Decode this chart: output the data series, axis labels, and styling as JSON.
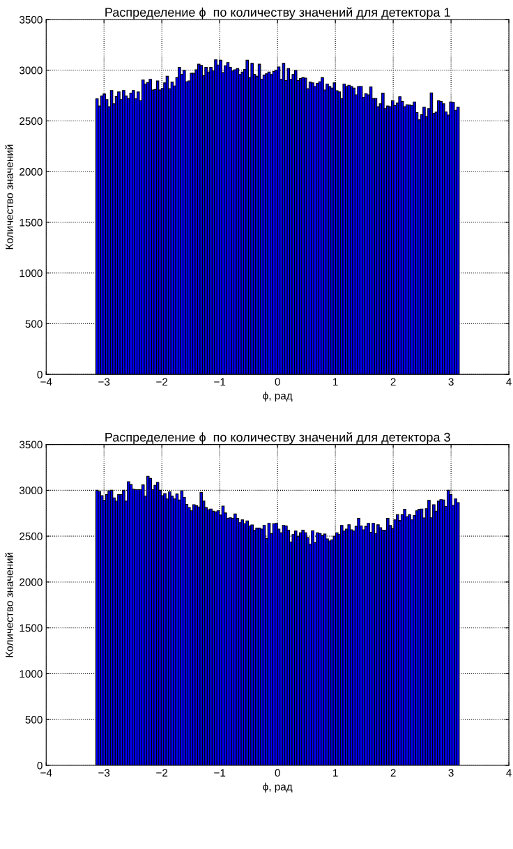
{
  "chart_data": [
    {
      "type": "histogram",
      "title": "Распределение ϕ  по количеству значений для детектора 1",
      "xlabel": "ϕ, рад",
      "ylabel": "Количество значений",
      "color": "#0000ff",
      "bins": [
        -3.142,
        -3.1,
        -3.058,
        -3.016,
        -2.974,
        -2.932,
        -2.89,
        -2.848,
        -2.806,
        -2.765,
        -2.723,
        -2.681,
        -2.639,
        -2.597,
        -2.555,
        -2.513,
        -2.471,
        -2.429,
        -2.388,
        -2.346,
        -2.304,
        -2.262,
        -2.22,
        -2.178,
        -2.136,
        -2.094,
        -2.053,
        -2.011,
        -1.969,
        -1.927,
        -1.885,
        -1.843,
        -1.801,
        -1.759,
        -1.717,
        -1.676,
        -1.634,
        -1.592,
        -1.55,
        -1.508,
        -1.466,
        -1.424,
        -1.382,
        -1.34,
        -1.299,
        -1.257,
        -1.215,
        -1.173,
        -1.131,
        -1.089,
        -1.047,
        -1.005,
        -0.963,
        -0.922,
        -0.88,
        -0.838,
        -0.796,
        -0.754,
        -0.712,
        -0.67,
        -0.628,
        -0.586,
        -0.545,
        -0.503,
        -0.461,
        -0.419,
        -0.377,
        -0.335,
        -0.293,
        -0.251,
        -0.209,
        -0.168,
        -0.126,
        -0.084,
        -0.042,
        0,
        0.042,
        0.084,
        0.126,
        0.168,
        0.209,
        0.251,
        0.293,
        0.335,
        0.377,
        0.419,
        0.461,
        0.503,
        0.545,
        0.586,
        0.628,
        0.67,
        0.712,
        0.754,
        0.796,
        0.838,
        0.88,
        0.922,
        0.963,
        1.005,
        1.047,
        1.089,
        1.131,
        1.173,
        1.215,
        1.257,
        1.299,
        1.34,
        1.382,
        1.424,
        1.466,
        1.508,
        1.55,
        1.592,
        1.634,
        1.676,
        1.717,
        1.759,
        1.801,
        1.843,
        1.885,
        1.927,
        1.969,
        2.011,
        2.053,
        2.094,
        2.136,
        2.178,
        2.22,
        2.262,
        2.304,
        2.346,
        2.388,
        2.429,
        2.471,
        2.513,
        2.555,
        2.597,
        2.639,
        2.681,
        2.723,
        2.765,
        2.806,
        2.848,
        2.89,
        2.932,
        2.974,
        3.016,
        3.058,
        3.1,
        3.142
      ],
      "values": [
        2718,
        2647,
        2746,
        2765,
        2711,
        2640,
        2800,
        2669,
        2741,
        2786,
        2711,
        2800,
        2746,
        2722,
        2774,
        2800,
        2718,
        2786,
        2699,
        2904,
        2864,
        2880,
        2911,
        2805,
        2810,
        2894,
        2805,
        2821,
        2875,
        2941,
        2817,
        2882,
        2845,
        2927,
        3028,
        2958,
        2998,
        2887,
        2894,
        2970,
        2970,
        3005,
        3059,
        3047,
        2946,
        3028,
        2982,
        3028,
        2993,
        3103,
        3052,
        3099,
        2977,
        3045,
        3075,
        3028,
        2993,
        3005,
        3017,
        2958,
        2982,
        3009,
        3099,
        2927,
        3068,
        2958,
        2941,
        3059,
        2911,
        2951,
        2965,
        2982,
        2958,
        2988,
        3002,
        3033,
        2911,
        3068,
        2899,
        3017,
        2911,
        2958,
        2998,
        2899,
        2918,
        2927,
        2923,
        2817,
        2882,
        2875,
        2840,
        2870,
        2887,
        2927,
        2805,
        2864,
        2840,
        2824,
        2875,
        2798,
        2786,
        2722,
        2863,
        2840,
        2852,
        2840,
        2824,
        2758,
        2840,
        2840,
        2734,
        2770,
        2758,
        2835,
        2722,
        2722,
        2640,
        2669,
        2774,
        2622,
        2647,
        2640,
        2699,
        2652,
        2676,
        2739,
        2692,
        2640,
        2659,
        2657,
        2652,
        2687,
        2582,
        2511,
        2561,
        2636,
        2542,
        2622,
        2777,
        2575,
        2587,
        2699,
        2692,
        2669,
        2589,
        2558,
        2687,
        2683,
        2605,
        2636
      ],
      "xlim": [
        -4,
        4
      ],
      "xticks": [
        {
          "value": -4,
          "label": "−4"
        },
        {
          "value": -3,
          "label": "−3"
        },
        {
          "value": -2,
          "label": "−2"
        },
        {
          "value": -1,
          "label": "−1"
        },
        0,
        1,
        2,
        3,
        4
      ],
      "ylim": [
        0,
        3500
      ],
      "yticks": [
        0,
        500,
        1000,
        1500,
        2000,
        2500,
        3000,
        3500
      ],
      "grid": true
    },
    {
      "type": "histogram",
      "title": "Распределение ϕ  по количеству значений для детектора 3",
      "xlabel": "ϕ, рад",
      "ylabel": "Количество значений",
      "color": "#0000ff",
      "bins": [
        -3.142,
        -3.1,
        -3.058,
        -3.016,
        -2.974,
        -2.932,
        -2.89,
        -2.848,
        -2.806,
        -2.765,
        -2.723,
        -2.681,
        -2.639,
        -2.597,
        -2.555,
        -2.513,
        -2.471,
        -2.429,
        -2.388,
        -2.346,
        -2.304,
        -2.262,
        -2.22,
        -2.178,
        -2.136,
        -2.094,
        -2.053,
        -2.011,
        -1.969,
        -1.927,
        -1.885,
        -1.843,
        -1.801,
        -1.759,
        -1.717,
        -1.676,
        -1.634,
        -1.592,
        -1.55,
        -1.508,
        -1.466,
        -1.424,
        -1.382,
        -1.34,
        -1.299,
        -1.257,
        -1.215,
        -1.173,
        -1.131,
        -1.089,
        -1.047,
        -1.005,
        -0.963,
        -0.922,
        -0.88,
        -0.838,
        -0.796,
        -0.754,
        -0.712,
        -0.67,
        -0.628,
        -0.586,
        -0.545,
        -0.503,
        -0.461,
        -0.419,
        -0.377,
        -0.335,
        -0.293,
        -0.251,
        -0.209,
        -0.168,
        -0.126,
        -0.084,
        -0.042,
        0,
        0.042,
        0.084,
        0.126,
        0.168,
        0.209,
        0.251,
        0.293,
        0.335,
        0.377,
        0.419,
        0.461,
        0.503,
        0.545,
        0.586,
        0.628,
        0.67,
        0.712,
        0.754,
        0.796,
        0.838,
        0.88,
        0.922,
        0.963,
        1.005,
        1.047,
        1.089,
        1.131,
        1.173,
        1.215,
        1.257,
        1.299,
        1.34,
        1.382,
        1.424,
        1.466,
        1.508,
        1.55,
        1.592,
        1.634,
        1.676,
        1.717,
        1.759,
        1.801,
        1.843,
        1.885,
        1.927,
        1.969,
        2.011,
        2.053,
        2.094,
        2.136,
        2.178,
        2.22,
        2.262,
        2.304,
        2.346,
        2.388,
        2.429,
        2.471,
        2.513,
        2.555,
        2.597,
        2.639,
        2.681,
        2.723,
        2.765,
        2.806,
        2.848,
        2.89,
        2.932,
        2.974,
        3.016,
        3.058,
        3.1,
        3.142
      ],
      "values": [
        3000,
        2988,
        2941,
        2890,
        2953,
        2993,
        3000,
        2918,
        2882,
        2953,
        2953,
        3000,
        2882,
        3094,
        3063,
        3012,
        3007,
        3007,
        3007,
        3059,
        2937,
        3153,
        3129,
        3007,
        3054,
        3087,
        3000,
        2941,
        2964,
        2906,
        2984,
        2937,
        2906,
        2960,
        2894,
        2993,
        2923,
        2847,
        2812,
        2777,
        2843,
        2831,
        2819,
        2977,
        2882,
        2812,
        2788,
        2796,
        2772,
        2765,
        2777,
        2730,
        2828,
        2753,
        2694,
        2701,
        2694,
        2742,
        2694,
        2648,
        2678,
        2636,
        2666,
        2612,
        2623,
        2565,
        2588,
        2588,
        2577,
        2617,
        2476,
        2640,
        2530,
        2636,
        2640,
        2577,
        2537,
        2617,
        2612,
        2565,
        2436,
        2518,
        2556,
        2499,
        2537,
        2565,
        2537,
        2483,
        2412,
        2558,
        2429,
        2537,
        2530,
        2506,
        2523,
        2471,
        2448,
        2459,
        2499,
        2537,
        2518,
        2617,
        2556,
        2577,
        2624,
        2570,
        2556,
        2607,
        2694,
        2612,
        2570,
        2607,
        2640,
        2542,
        2640,
        2530,
        2624,
        2593,
        2565,
        2565,
        2694,
        2617,
        2584,
        2678,
        2734,
        2671,
        2734,
        2793,
        2711,
        2734,
        2678,
        2725,
        2777,
        2793,
        2796,
        2699,
        2800,
        2890,
        2701,
        2843,
        2772,
        2882,
        2899,
        2894,
        2824,
        3000,
        2953,
        2836,
        2906,
        2866
      ],
      "xlim": [
        -4,
        4
      ],
      "xticks": [
        {
          "value": -4,
          "label": "−4"
        },
        {
          "value": -3,
          "label": "−3"
        },
        {
          "value": -2,
          "label": "−2"
        },
        {
          "value": -1,
          "label": "−1"
        },
        0,
        1,
        2,
        3,
        4
      ],
      "ylim": [
        0,
        3500
      ],
      "yticks": [
        0,
        500,
        1000,
        1500,
        2000,
        2500,
        3000,
        3500
      ],
      "grid": true
    }
  ]
}
